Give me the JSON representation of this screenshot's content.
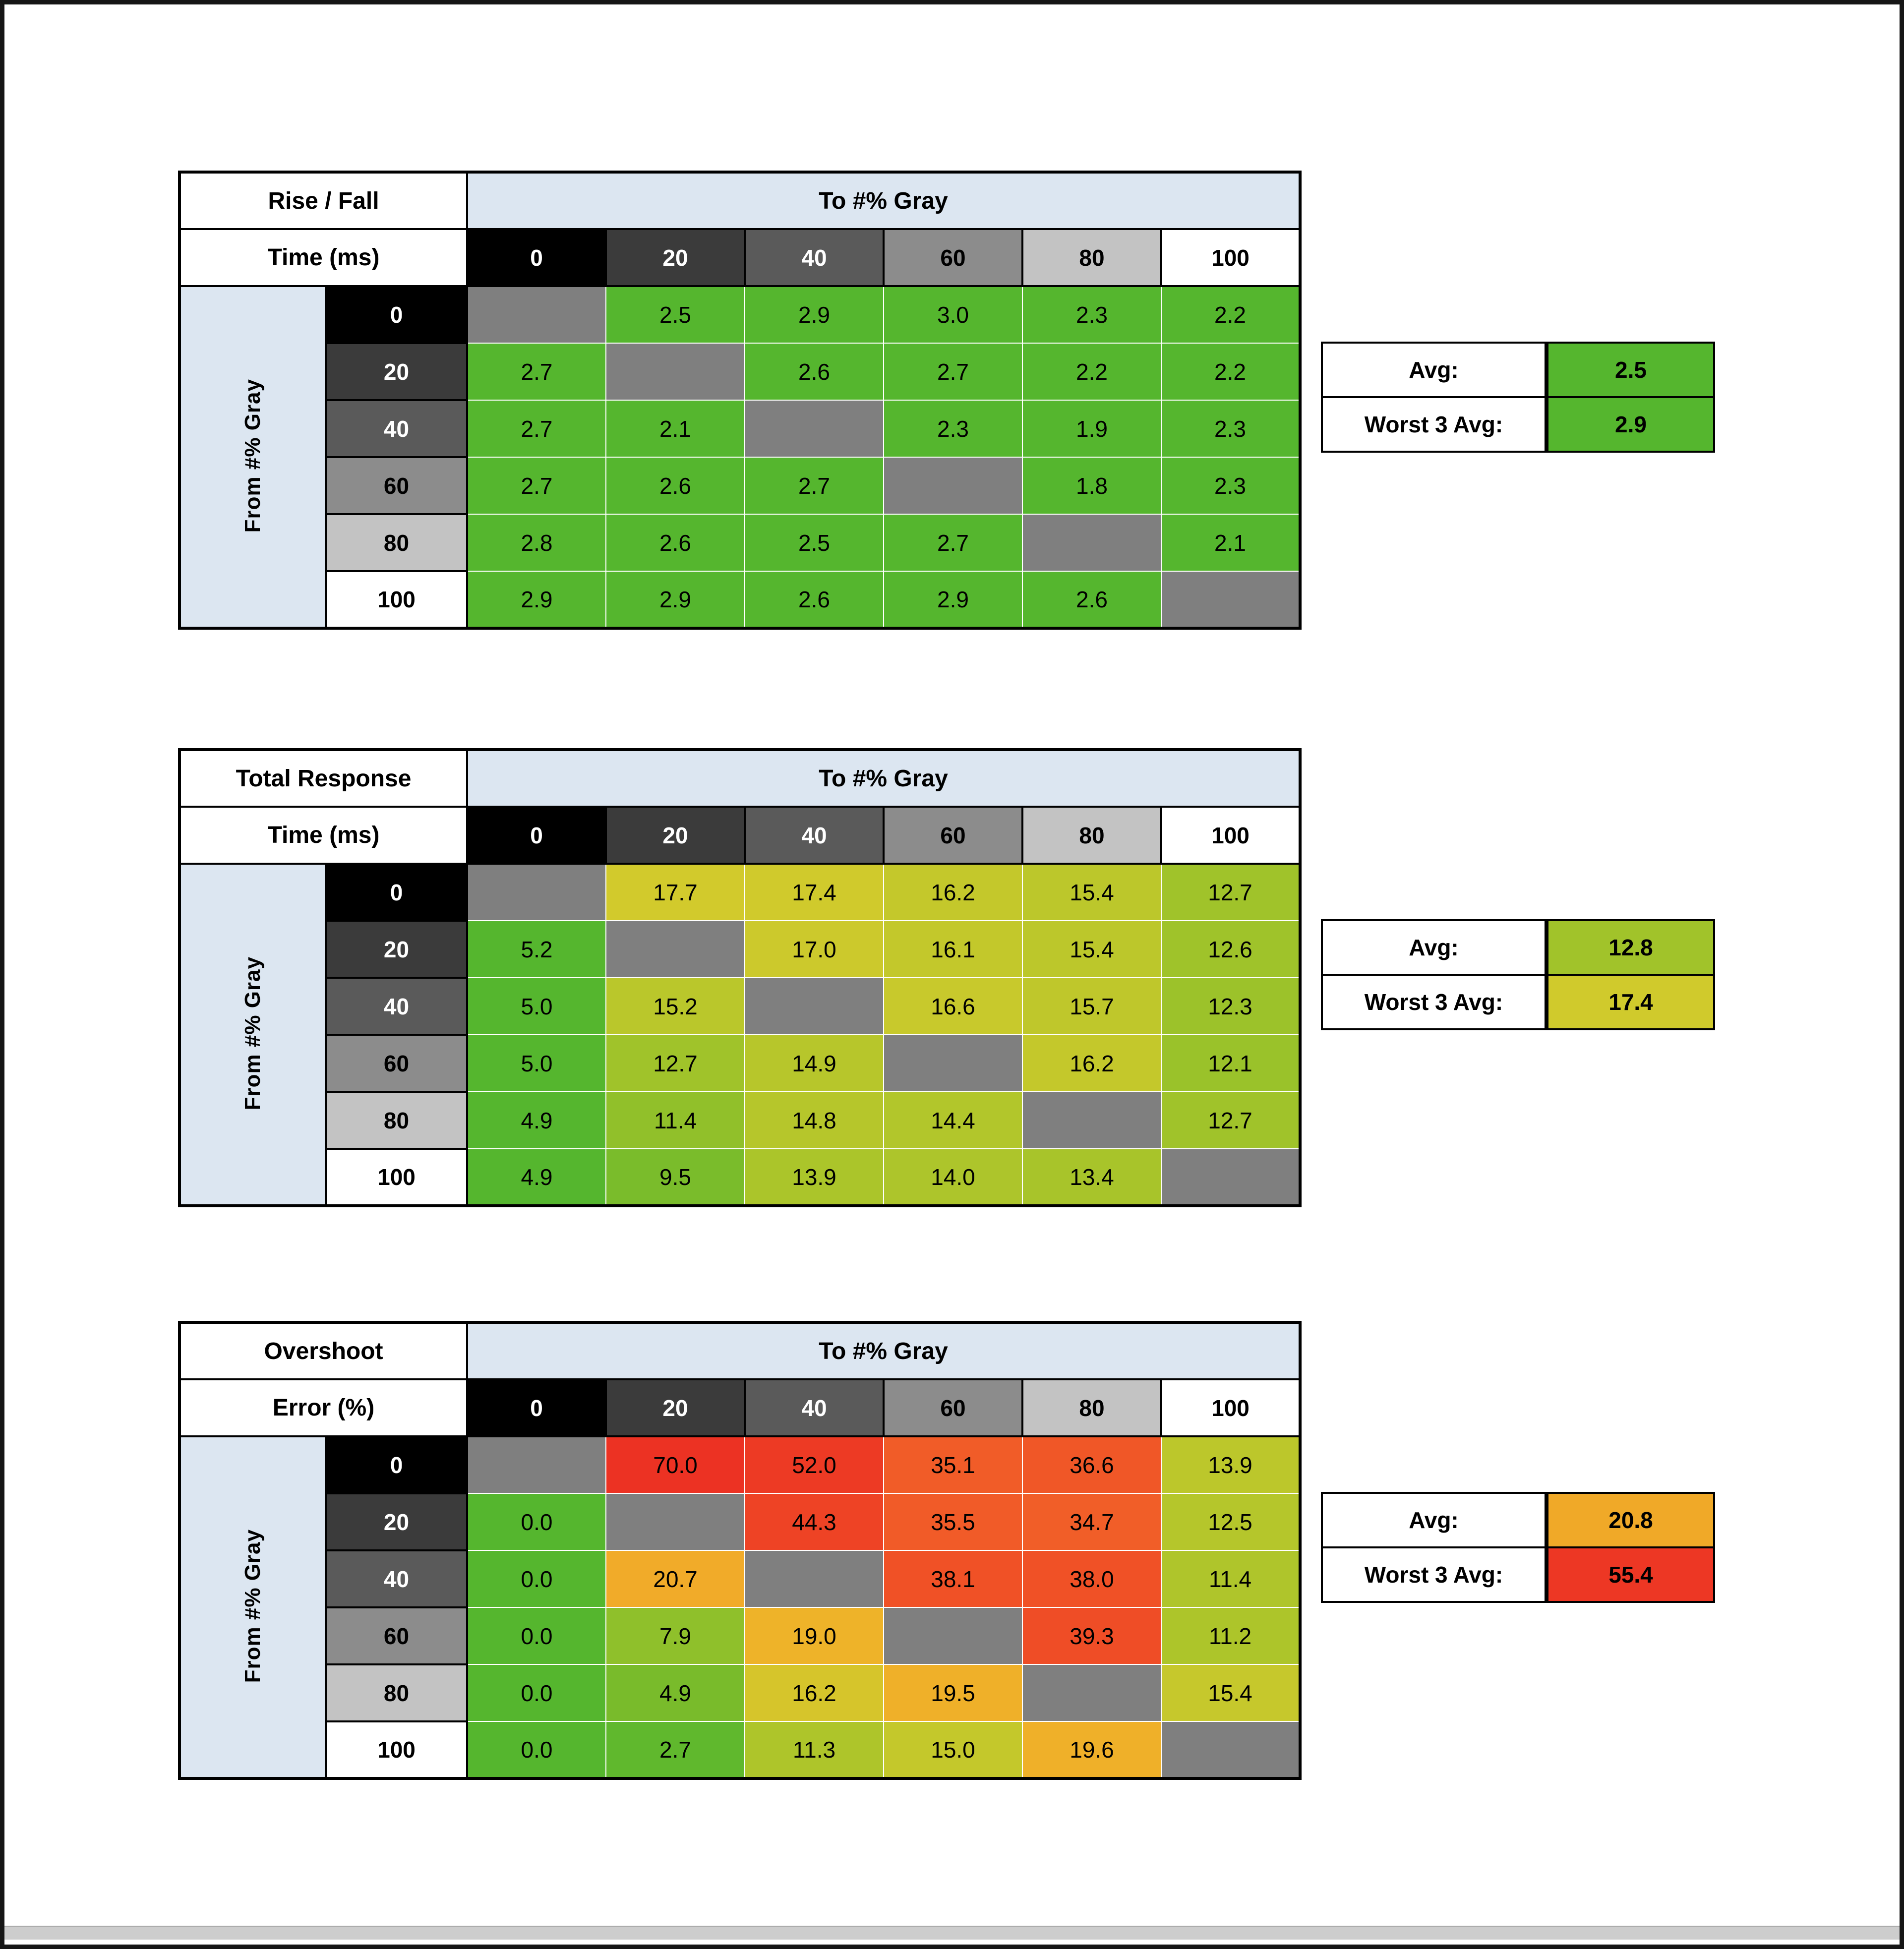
{
  "style": {
    "header_band_color": "#dce6f1",
    "diagonal_color": "#7f7f7f",
    "scrollbar_color": "#cdcdcd",
    "gray_header_colors": [
      {
        "bg": "#000000",
        "fg": "#ffffff"
      },
      {
        "bg": "#3b3b3b",
        "fg": "#ffffff"
      },
      {
        "bg": "#5a5a5a",
        "fg": "#ffffff"
      },
      {
        "bg": "#8c8c8c",
        "fg": "#000000"
      },
      {
        "bg": "#c3c3c3",
        "fg": "#000000"
      },
      {
        "bg": "#ffffff",
        "fg": "#000000"
      }
    ]
  },
  "chart_data": [
    {
      "type": "heatmap",
      "name": "rise-fall-time",
      "title_line1": "Rise / Fall",
      "title_line2": "Time (ms)",
      "x_axis_label": "To #% Gray",
      "y_axis_label": "From #% Gray",
      "x_ticks": [
        "0",
        "20",
        "40",
        "60",
        "80",
        "100"
      ],
      "y_ticks": [
        "0",
        "20",
        "40",
        "60",
        "80",
        "100"
      ],
      "values": [
        [
          null,
          2.5,
          2.9,
          3.0,
          2.3,
          2.2
        ],
        [
          2.7,
          null,
          2.6,
          2.7,
          2.2,
          2.2
        ],
        [
          2.7,
          2.1,
          null,
          2.3,
          1.9,
          2.3
        ],
        [
          2.7,
          2.6,
          2.7,
          null,
          1.8,
          2.3
        ],
        [
          2.8,
          2.6,
          2.5,
          2.7,
          null,
          2.1
        ],
        [
          2.9,
          2.9,
          2.6,
          2.9,
          2.6,
          null
        ]
      ],
      "cell_colors": [
        [
          null,
          "#55b62e",
          "#55b62e",
          "#55b62e",
          "#55b62e",
          "#55b62e"
        ],
        [
          "#55b62e",
          null,
          "#55b62e",
          "#55b62e",
          "#55b62e",
          "#55b62e"
        ],
        [
          "#55b62e",
          "#55b62e",
          null,
          "#55b62e",
          "#55b62e",
          "#55b62e"
        ],
        [
          "#55b62e",
          "#55b62e",
          "#55b62e",
          null,
          "#55b62e",
          "#55b62e"
        ],
        [
          "#55b62e",
          "#55b62e",
          "#55b62e",
          "#55b62e",
          null,
          "#55b62e"
        ],
        [
          "#55b62e",
          "#55b62e",
          "#55b62e",
          "#55b62e",
          "#55b62e",
          null
        ]
      ],
      "summary": {
        "avg_label": "Avg:",
        "avg": 2.5,
        "avg_color": "#55b62e",
        "worst_label": "Worst 3 Avg:",
        "worst3_avg": 2.9,
        "worst_color": "#55b62e"
      }
    },
    {
      "type": "heatmap",
      "name": "total-response-time",
      "title_line1": "Total Response",
      "title_line2": "Time (ms)",
      "x_axis_label": "To #% Gray",
      "y_axis_label": "From #% Gray",
      "x_ticks": [
        "0",
        "20",
        "40",
        "60",
        "80",
        "100"
      ],
      "y_ticks": [
        "0",
        "20",
        "40",
        "60",
        "80",
        "100"
      ],
      "values": [
        [
          null,
          17.7,
          17.4,
          16.2,
          15.4,
          12.7
        ],
        [
          5.2,
          null,
          17.0,
          16.1,
          15.4,
          12.6
        ],
        [
          5.0,
          15.2,
          null,
          16.6,
          15.7,
          12.3
        ],
        [
          5.0,
          12.7,
          14.9,
          null,
          16.2,
          12.1
        ],
        [
          4.9,
          11.4,
          14.8,
          14.4,
          null,
          12.7
        ],
        [
          4.9,
          9.5,
          13.9,
          14.0,
          13.4,
          null
        ]
      ],
      "cell_colors": [
        [
          null,
          "#d2ca2c",
          "#d0ca2c",
          "#c4c82b",
          "#bcc72b",
          "#a0c32a"
        ],
        [
          "#55b62e",
          null,
          "#ccc92c",
          "#c3c82b",
          "#bcc72b",
          "#9fc32a"
        ],
        [
          "#55b62e",
          "#bac72b",
          null,
          "#c8c92c",
          "#bfc72b",
          "#9cc22a"
        ],
        [
          "#55b62e",
          "#a0c32a",
          "#b7c62b",
          null,
          "#c4c82b",
          "#9ac22a"
        ],
        [
          "#55b62e",
          "#91c02a",
          "#b6c62b",
          "#b2c62b",
          null,
          "#a0c32a"
        ],
        [
          "#55b62e",
          "#7abc2b",
          "#abc52a",
          "#adc52b",
          "#a8c42a",
          null
        ]
      ],
      "summary": {
        "avg_label": "Avg:",
        "avg": 12.8,
        "avg_color": "#a1c32a",
        "worst_label": "Worst 3 Avg:",
        "worst3_avg": 17.4,
        "worst_color": "#d0ca2c"
      }
    },
    {
      "type": "heatmap",
      "name": "overshoot-error",
      "title_line1": "Overshoot",
      "title_line2": "Error (%)",
      "x_axis_label": "To #% Gray",
      "y_axis_label": "From #% Gray",
      "x_ticks": [
        "0",
        "20",
        "40",
        "60",
        "80",
        "100"
      ],
      "y_ticks": [
        "0",
        "20",
        "40",
        "60",
        "80",
        "100"
      ],
      "values": [
        [
          null,
          70.0,
          52.0,
          35.1,
          36.6,
          13.9
        ],
        [
          0.0,
          null,
          44.3,
          35.5,
          34.7,
          12.5
        ],
        [
          0.0,
          20.7,
          null,
          38.1,
          38.0,
          11.4
        ],
        [
          0.0,
          7.9,
          19.0,
          null,
          39.3,
          11.2
        ],
        [
          0.0,
          4.9,
          16.2,
          19.5,
          null,
          15.4
        ],
        [
          0.0,
          2.7,
          11.3,
          15.0,
          19.6,
          null
        ]
      ],
      "cell_colors": [
        [
          null,
          "#ec3223",
          "#ed3a24",
          "#f15c28",
          "#f05727",
          "#bcc72b"
        ],
        [
          "#55b62e",
          null,
          "#ee4325",
          "#f15b28",
          "#f15e28",
          "#b5c62b"
        ],
        [
          "#55b62e",
          "#f1ab29",
          null,
          "#f05126",
          "#f05126",
          "#afc52b"
        ],
        [
          "#55b62e",
          "#8fc02b",
          "#eeb329",
          null,
          "#ef4d26",
          "#adc52a"
        ],
        [
          "#55b62e",
          "#79bb2b",
          "#d6c52b",
          "#efb029",
          null,
          "#c6c82c"
        ],
        [
          "#55b62e",
          "#60b82d",
          "#aec52a",
          "#c4c82b",
          "#efb029",
          null
        ]
      ],
      "summary": {
        "avg_label": "Avg:",
        "avg": 20.8,
        "avg_color": "#f0a928",
        "worst_label": "Worst 3 Avg:",
        "worst3_avg": 55.4,
        "worst_color": "#ed3724"
      }
    }
  ]
}
